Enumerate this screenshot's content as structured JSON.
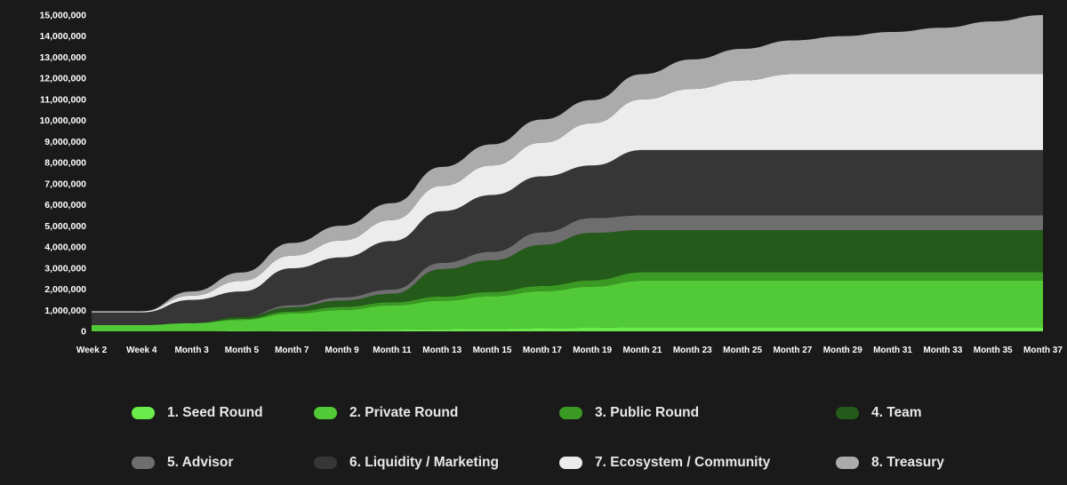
{
  "colors": {
    "background": "#1a1a1a",
    "axis_text": "#ffffff"
  },
  "chart_data": {
    "type": "area",
    "stacked": true,
    "title": "",
    "xlabel": "",
    "ylabel": "",
    "ylim": [
      0,
      15000000
    ],
    "y_ticks": [
      "0",
      "1,000,000",
      "2,000,000",
      "3,000,000",
      "4,000,000",
      "5,000,000",
      "6,000,000",
      "7,000,000",
      "8,000,000",
      "9,000,000",
      "10,000,000",
      "11,000,000",
      "12,000,000",
      "13,000,000",
      "14,000,000",
      "15,000,000"
    ],
    "y_tick_values": [
      0,
      1000000,
      2000000,
      3000000,
      4000000,
      5000000,
      6000000,
      7000000,
      8000000,
      9000000,
      10000000,
      11000000,
      12000000,
      13000000,
      14000000,
      15000000
    ],
    "x_ticks": [
      "Week 2",
      "Week 4",
      "Month 3",
      "Month 5",
      "Month 7",
      "Month 9",
      "Month 11",
      "Month 13",
      "Month 15",
      "Month 17",
      "Month 19",
      "Month 21",
      "Month 23",
      "Month 25",
      "Month 27",
      "Month 29",
      "Month 31",
      "Month 33",
      "Month 35",
      "Month 37"
    ],
    "x": [
      "Week 2",
      "Week 4",
      "Month 3",
      "Month 5",
      "Month 7",
      "Month 9",
      "Month 11",
      "Month 13",
      "Month 15",
      "Month 17",
      "Month 19",
      "Month 21",
      "Month 23",
      "Month 25",
      "Month 27",
      "Month 29",
      "Month 31",
      "Month 33",
      "Month 35",
      "Month 37"
    ],
    "series": [
      {
        "name": "1. Seed Round",
        "color": "#6aec4a",
        "values": [
          0,
          0,
          10000,
          20000,
          40000,
          60000,
          80000,
          100000,
          120000,
          150000,
          170000,
          200000,
          200000,
          200000,
          200000,
          200000,
          200000,
          200000,
          200000,
          200000
        ]
      },
      {
        "name": "2. Private Round",
        "color": "#52c936",
        "values": [
          300000,
          300000,
          380000,
          520000,
          800000,
          950000,
          1150000,
          1350000,
          1550000,
          1750000,
          1950000,
          2200000,
          2200000,
          2200000,
          2200000,
          2200000,
          2200000,
          2200000,
          2200000,
          2200000
        ]
      },
      {
        "name": "3. Public Round",
        "color": "#3a9a24",
        "values": [
          0,
          0,
          0,
          50000,
          100000,
          150000,
          150000,
          200000,
          200000,
          250000,
          300000,
          400000,
          400000,
          400000,
          400000,
          400000,
          400000,
          400000,
          400000,
          400000
        ]
      },
      {
        "name": "4. Team",
        "color": "#245a1a",
        "values": [
          0,
          0,
          0,
          100000,
          200000,
          300000,
          400000,
          1300000,
          1500000,
          1950000,
          2250000,
          2000000,
          2000000,
          2000000,
          2000000,
          2000000,
          2000000,
          2000000,
          2000000,
          2000000
        ]
      },
      {
        "name": "5. Advisor",
        "color": "#6e6e6e",
        "values": [
          0,
          0,
          0,
          0,
          100000,
          150000,
          200000,
          300000,
          400000,
          600000,
          700000,
          700000,
          700000,
          700000,
          700000,
          700000,
          700000,
          700000,
          700000,
          700000
        ]
      },
      {
        "name": "6. Liquidity / Marketing",
        "color": "#363636",
        "values": [
          600000,
          600000,
          1100000,
          1200000,
          1750000,
          1900000,
          2300000,
          2450000,
          2700000,
          2650000,
          2500000,
          3100000,
          3100000,
          3100000,
          3100000,
          3100000,
          3100000,
          3100000,
          3100000,
          3100000
        ]
      },
      {
        "name": "7. Ecosystem / Community",
        "color": "#ececec",
        "values": [
          50000,
          50000,
          200000,
          500000,
          600000,
          800000,
          1000000,
          1200000,
          1400000,
          1600000,
          2000000,
          2400000,
          2900000,
          3300000,
          3600000,
          3600000,
          3600000,
          3600000,
          3600000,
          3600000
        ]
      },
      {
        "name": "8. Treasury",
        "color": "#ababab",
        "values": [
          0,
          0,
          200000,
          400000,
          600000,
          700000,
          800000,
          900000,
          1000000,
          1100000,
          1100000,
          1200000,
          1400000,
          1500000,
          1600000,
          1800000,
          2000000,
          2200000,
          2500000,
          2800000
        ]
      }
    ],
    "legend_placement": "bottom",
    "grid": false
  }
}
